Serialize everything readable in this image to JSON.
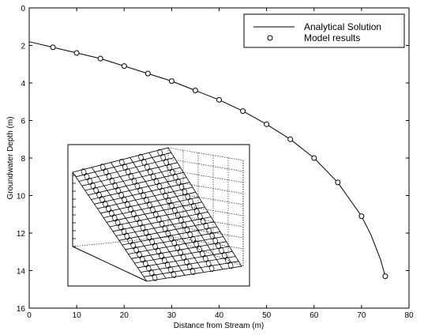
{
  "chart_data": {
    "type": "line",
    "title": "",
    "xlabel": "Distance from Stream (m)",
    "ylabel": "Groundwater Depth (m)",
    "xlim": [
      0,
      80
    ],
    "ylim": [
      0,
      16
    ],
    "y_inverted": true,
    "grid": false,
    "legend_position": "top-right",
    "xticks": [
      "0",
      "10",
      "20",
      "30",
      "40",
      "50",
      "60",
      "70",
      "80"
    ],
    "yticks": [
      "0",
      "2",
      "4",
      "6",
      "8",
      "10",
      "12",
      "14",
      "16"
    ],
    "series": [
      {
        "name": "Analytical Solution",
        "style": "line",
        "color": "#000000",
        "x": [
          0,
          5,
          10,
          15,
          20,
          25,
          30,
          35,
          40,
          45,
          50,
          55,
          60,
          65,
          70,
          72,
          74,
          75
        ],
        "y": [
          1.8,
          2.1,
          2.4,
          2.7,
          3.1,
          3.5,
          3.9,
          4.4,
          4.9,
          5.5,
          6.2,
          7.0,
          8.0,
          9.3,
          11.1,
          12.1,
          13.4,
          14.3
        ]
      },
      {
        "name": "Model results",
        "style": "marker-circle",
        "color": "#000000",
        "x": [
          5,
          10,
          15,
          20,
          25,
          30,
          35,
          40,
          45,
          50,
          55,
          60,
          65,
          70,
          75
        ],
        "y": [
          2.1,
          2.4,
          2.7,
          3.1,
          3.5,
          3.9,
          4.4,
          4.9,
          5.5,
          6.2,
          7.0,
          8.0,
          9.3,
          11.1,
          14.3
        ]
      }
    ],
    "inset": {
      "type": "3d-mesh"
    }
  }
}
